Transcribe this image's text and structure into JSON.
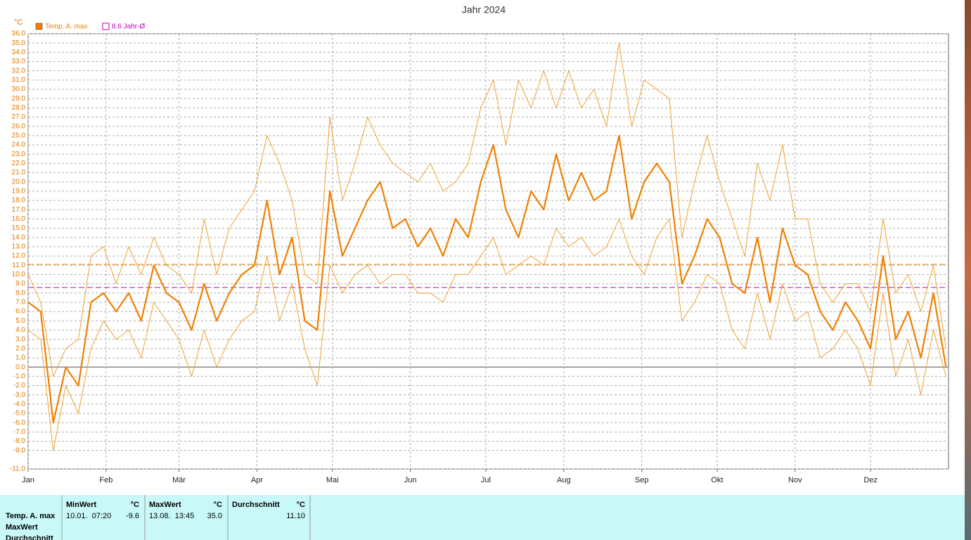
{
  "chart_data": {
    "type": "line",
    "title": "Jahr 2024",
    "y_unit": "°C",
    "x": [
      0,
      5,
      10,
      15,
      20,
      25,
      30,
      35,
      40,
      45,
      50,
      55,
      60,
      65,
      70,
      75,
      80,
      85,
      90,
      95,
      100,
      105,
      110,
      115,
      120,
      125,
      130,
      135,
      140,
      145,
      150,
      155,
      160,
      165,
      170,
      175,
      180,
      185,
      190,
      195,
      200,
      205,
      210,
      215,
      220,
      225,
      230,
      235,
      240,
      245,
      250,
      255,
      260,
      265,
      270,
      275,
      280,
      285,
      290,
      295,
      300,
      305,
      310,
      315,
      320,
      325,
      330,
      335,
      340,
      345,
      350,
      355,
      360,
      365
    ],
    "series": [
      {
        "color": "#f0a030",
        "width": 1,
        "values": [
          10,
          7,
          -1,
          2,
          3,
          12,
          13,
          9,
          13,
          10,
          14,
          11,
          10,
          8,
          16,
          10,
          15,
          17,
          19,
          25,
          22,
          18,
          10,
          9,
          27,
          18,
          22,
          27,
          24,
          22,
          21,
          20,
          22,
          19,
          20,
          22,
          28,
          31,
          24,
          31,
          28,
          32,
          28,
          32,
          28,
          30,
          26,
          35,
          26,
          31,
          30,
          29,
          14,
          20,
          25,
          20,
          16,
          12,
          22,
          18,
          24,
          16,
          16,
          9,
          7,
          9,
          9,
          6,
          16,
          8,
          10,
          6,
          11,
          2
        ]
      },
      {
        "color": "#f0a030",
        "width": 1,
        "values": [
          4,
          3,
          -9,
          -2,
          -5,
          2,
          5,
          3,
          4,
          1,
          7,
          5,
          3,
          -1,
          4,
          0,
          3,
          5,
          6,
          12,
          5,
          9,
          2,
          -2,
          11,
          8,
          10,
          11,
          9,
          10,
          10,
          8,
          8,
          7,
          10,
          10,
          12,
          14,
          10,
          11,
          12,
          11,
          15,
          13,
          14,
          12,
          13,
          16,
          12,
          10,
          14,
          16,
          5,
          7,
          10,
          9,
          4,
          2,
          8,
          3,
          9,
          5,
          6,
          1,
          2,
          4,
          2,
          -2,
          8,
          -1,
          3,
          -3,
          4,
          -1
        ]
      },
      {
        "name": "Temp. A. max",
        "color": "#f08000",
        "width": 2.2,
        "values": [
          7,
          6,
          -6,
          0,
          -2,
          7,
          8,
          6,
          8,
          5,
          11,
          8,
          7,
          4,
          9,
          5,
          8,
          10,
          11,
          18,
          10,
          14,
          5,
          4,
          19,
          12,
          15,
          18,
          20,
          15,
          16,
          13,
          15,
          12,
          16,
          14,
          20,
          24,
          17,
          14,
          19,
          17,
          23,
          18,
          21,
          18,
          19,
          25,
          16,
          20,
          22,
          20,
          9,
          12,
          16,
          14,
          9,
          8,
          14,
          7,
          15,
          11,
          10,
          6,
          4,
          7,
          5,
          2,
          12,
          3,
          6,
          1,
          8,
          0
        ]
      }
    ],
    "reference_lines": [
      {
        "value": 8.6,
        "label": "8.6 Jahr-Ø",
        "color": "#c000c0"
      },
      {
        "value": 11.1,
        "color": "#f08000"
      }
    ],
    "xlim": [
      0,
      366
    ],
    "xticks": [
      {
        "value": 0,
        "label": "Jan"
      },
      {
        "value": 31,
        "label": "Feb"
      },
      {
        "value": 60,
        "label": "Mär"
      },
      {
        "value": 91,
        "label": "Apr"
      },
      {
        "value": 121,
        "label": "Mai"
      },
      {
        "value": 152,
        "label": "Jun"
      },
      {
        "value": 182,
        "label": "Jul"
      },
      {
        "value": 213,
        "label": "Aug"
      },
      {
        "value": 244,
        "label": "Sep"
      },
      {
        "value": 274,
        "label": "Okt"
      },
      {
        "value": 305,
        "label": "Nov"
      },
      {
        "value": 335,
        "label": "Dez"
      }
    ],
    "ylim": [
      -11,
      36
    ],
    "yticks": [
      {
        "value": 36,
        "label": "36.0"
      },
      {
        "value": 35,
        "label": "35.0"
      },
      {
        "value": 34,
        "label": "34.0"
      },
      {
        "value": 33,
        "label": "33.0"
      },
      {
        "value": 32,
        "label": "32.0"
      },
      {
        "value": 31,
        "label": "31.0"
      },
      {
        "value": 30,
        "label": "30.0"
      },
      {
        "value": 29,
        "label": "29.0"
      },
      {
        "value": 28,
        "label": "28.0"
      },
      {
        "value": 27,
        "label": "27.0"
      },
      {
        "value": 26,
        "label": "26.0"
      },
      {
        "value": 25,
        "label": "25.0"
      },
      {
        "value": 24,
        "label": "24.0"
      },
      {
        "value": 23,
        "label": "23.0"
      },
      {
        "value": 22,
        "label": "22.0"
      },
      {
        "value": 21,
        "label": "21.0"
      },
      {
        "value": 20,
        "label": "20.0"
      },
      {
        "value": 19,
        "label": "19.0"
      },
      {
        "value": 18,
        "label": "18.0"
      },
      {
        "value": 17,
        "label": "17.0"
      },
      {
        "value": 16,
        "label": "16.0"
      },
      {
        "value": 15,
        "label": "15.0"
      },
      {
        "value": 14,
        "label": "14.0"
      },
      {
        "value": 13,
        "label": "13.0"
      },
      {
        "value": 12,
        "label": "12.0"
      },
      {
        "value": 11,
        "label": "11.0"
      },
      {
        "value": 10,
        "label": "10.0"
      },
      {
        "value": 9,
        "label": "9.0"
      },
      {
        "value": 8,
        "label": "8.0"
      },
      {
        "value": 7,
        "label": "7.0"
      },
      {
        "value": 6,
        "label": "6.0"
      },
      {
        "value": 5,
        "label": "5.0"
      },
      {
        "value": 4,
        "label": "4.0"
      },
      {
        "value": 3,
        "label": "3.0"
      },
      {
        "value": 2,
        "label": "2.0"
      },
      {
        "value": 1,
        "label": "1.0"
      },
      {
        "value": 0,
        "label": "0.0"
      },
      {
        "value": -1,
        "label": "-1.0"
      },
      {
        "value": -2,
        "label": "-2.0"
      },
      {
        "value": -3,
        "label": "-3.0"
      },
      {
        "value": -4,
        "label": "-4.0"
      },
      {
        "value": -5,
        "label": "-5.0"
      },
      {
        "value": -6,
        "label": "-6.0"
      },
      {
        "value": -7,
        "label": "-7.0"
      },
      {
        "value": -8,
        "label": "-8.0"
      },
      {
        "value": -9,
        "label": "-9.0"
      },
      {
        "value": -11,
        "label": "-11.0"
      }
    ],
    "grid": true
  },
  "table": {
    "row_labels": [
      "Temp. A. max",
      "MaxWert",
      "Durchschnitt"
    ],
    "columns": [
      {
        "header": "MinWert",
        "unit": "°C",
        "time": "10.01.  07:20",
        "value": "-9.6"
      },
      {
        "header": "MaxWert",
        "unit": "°C",
        "time": "13.08.  13:45",
        "value": "35.0"
      },
      {
        "header": "Durchschnitt",
        "unit": "°C",
        "time": "",
        "value": "11.10"
      }
    ]
  }
}
